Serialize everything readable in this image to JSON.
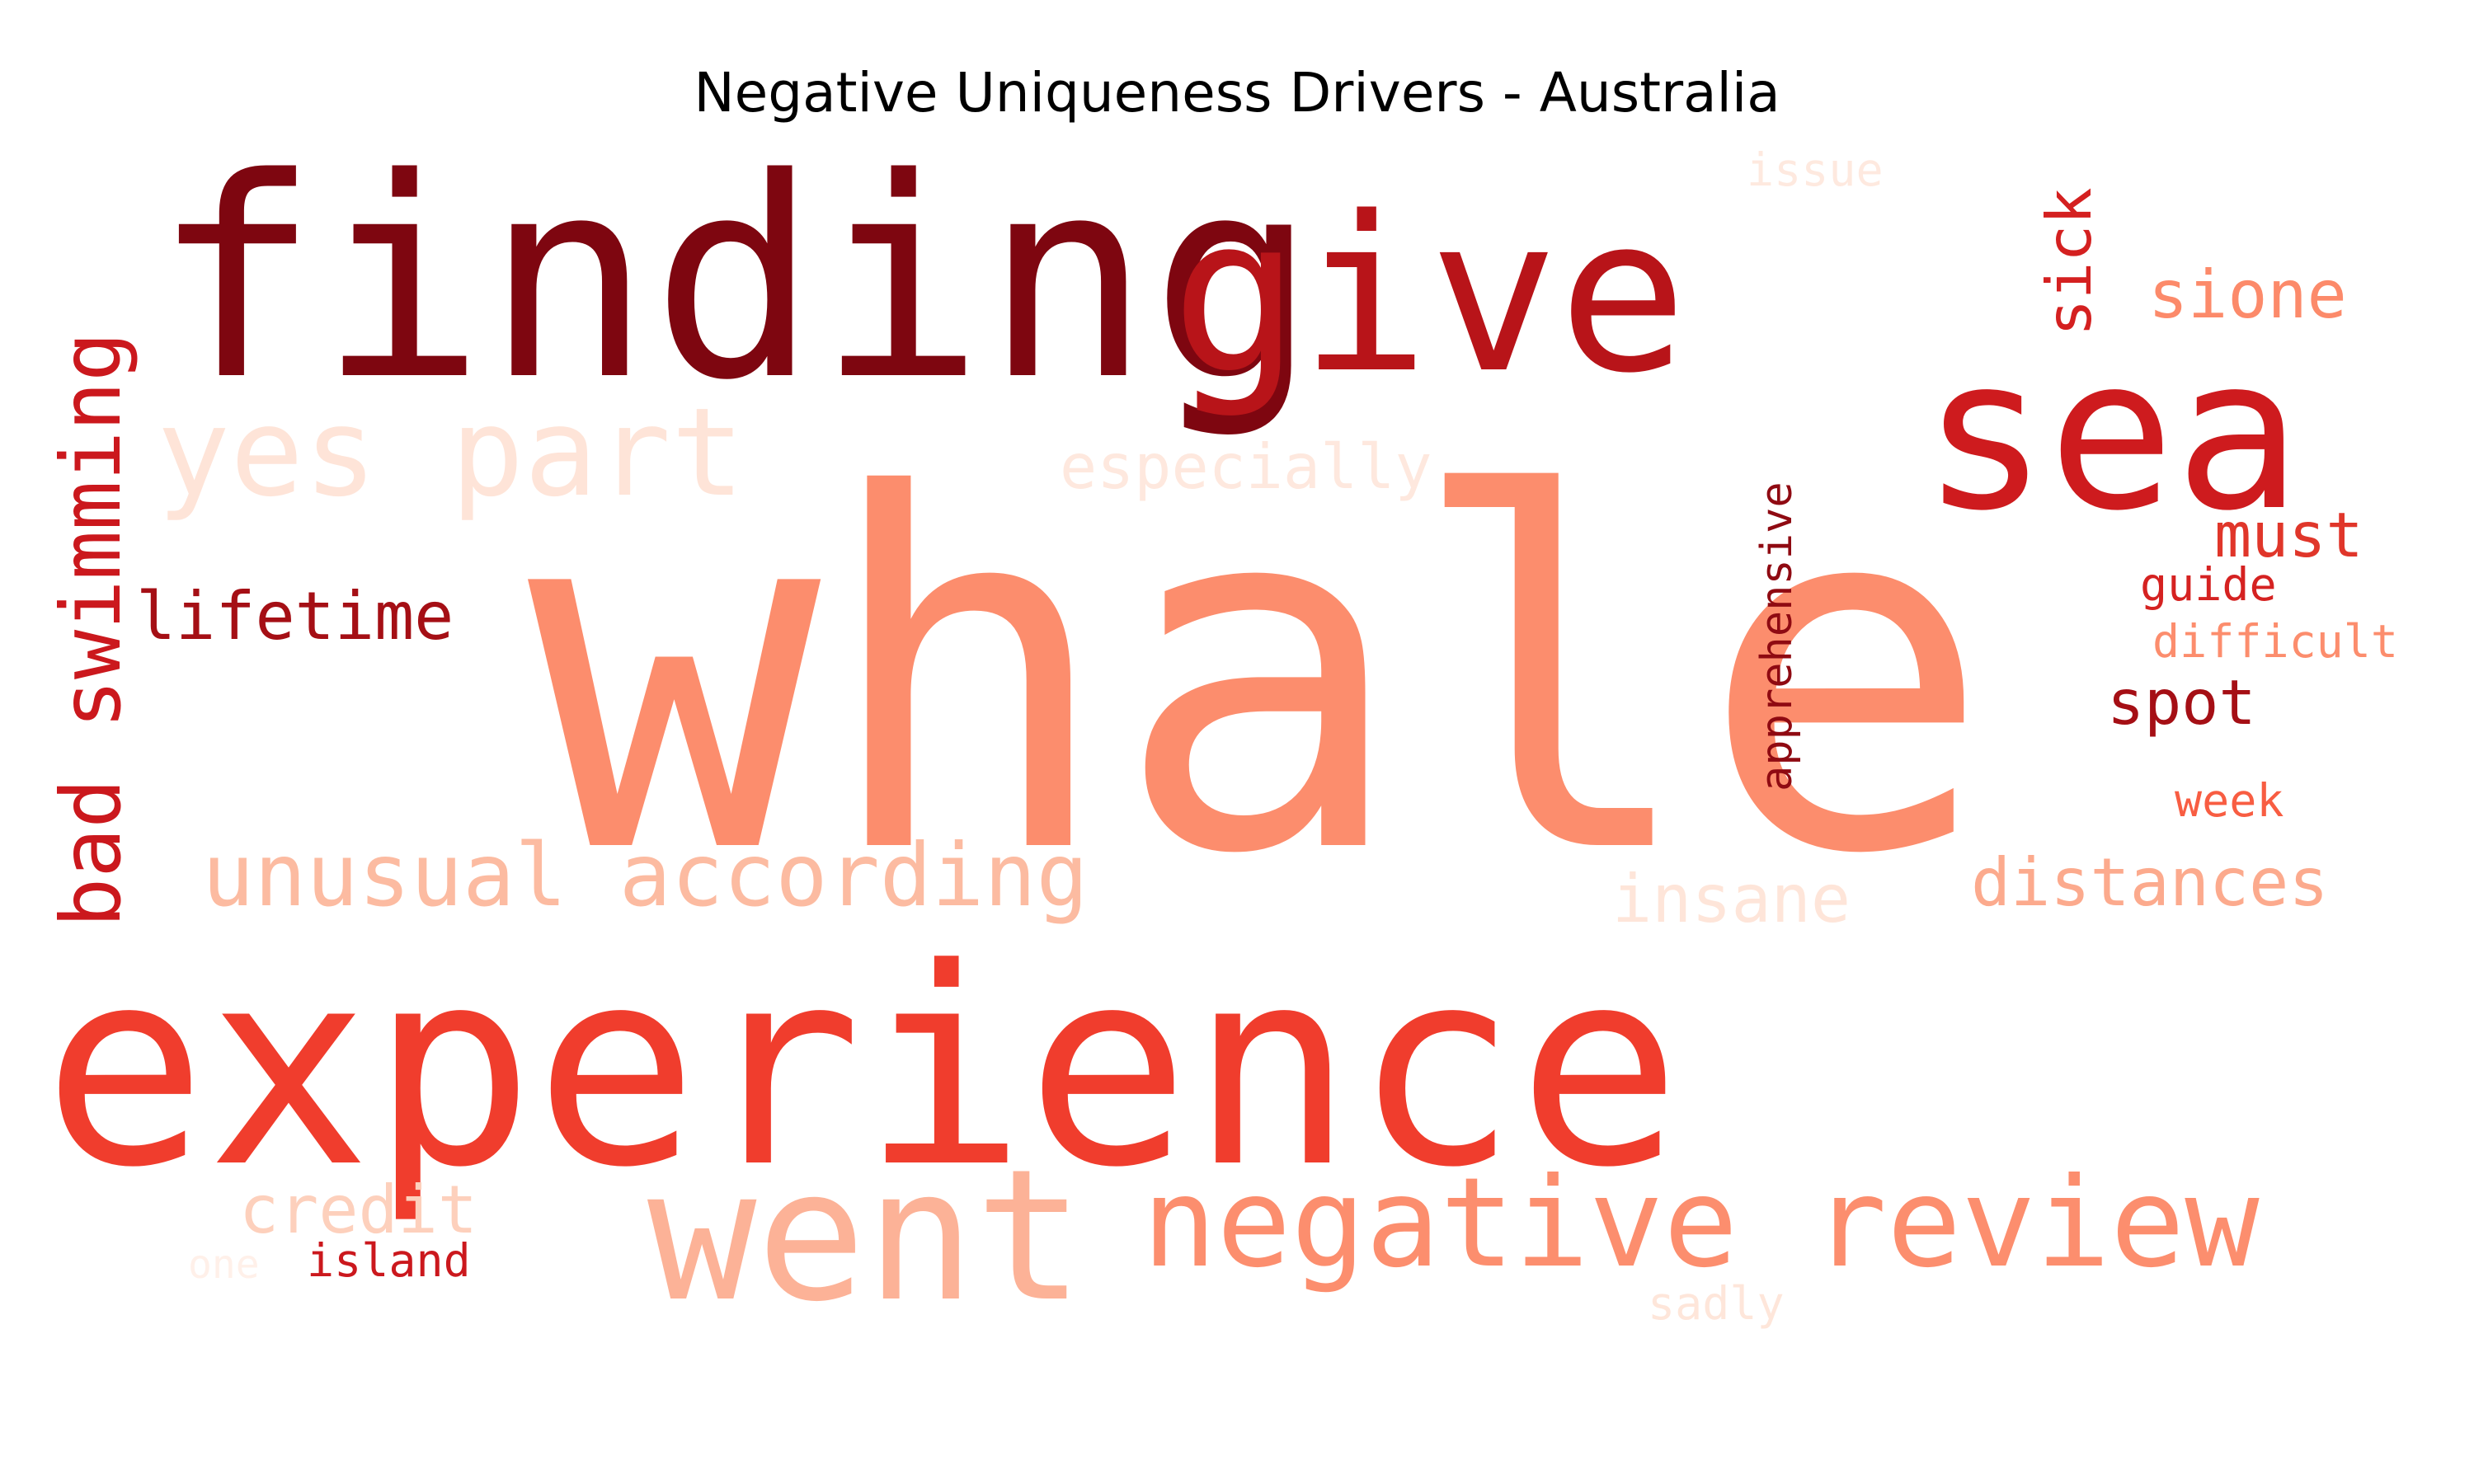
{
  "chart_data": {
    "type": "wordcloud",
    "title": "Negative Uniqueness Drivers - Australia",
    "colormap": "Reds",
    "words": [
      {
        "text": "whale",
        "weight": 100,
        "color": "#fc8d6d"
      },
      {
        "text": "experience",
        "weight": 80,
        "color": "#f03d2d"
      },
      {
        "text": "finding",
        "weight": 55,
        "color": "#7e0610"
      },
      {
        "text": "give",
        "weight": 45,
        "color": "#b81419"
      },
      {
        "text": "sea",
        "weight": 40,
        "color": "#ce1b1e"
      },
      {
        "text": "went",
        "weight": 38,
        "color": "#fcb297"
      },
      {
        "text": "negative review",
        "weight": 26,
        "color": "#fc8e6e"
      },
      {
        "text": "yes part",
        "weight": 25,
        "color": "#fee4d8"
      },
      {
        "text": "unusual according",
        "weight": 18,
        "color": "#fcbba1"
      },
      {
        "text": "bad swimming",
        "weight": 17,
        "color": "#cb181d"
      },
      {
        "text": "distances",
        "weight": 15,
        "color": "#fcaa8d"
      },
      {
        "text": "insane",
        "weight": 15,
        "color": "#fee5d9"
      },
      {
        "text": "sione",
        "weight": 14,
        "color": "#fc8a6a"
      },
      {
        "text": "lifetime",
        "weight": 14,
        "color": "#a50f15"
      },
      {
        "text": "credit",
        "weight": 14,
        "color": "#fdd0bc"
      },
      {
        "text": "especially",
        "weight": 14,
        "color": "#fee8de"
      },
      {
        "text": "sick",
        "weight": 13,
        "color": "#d42020"
      },
      {
        "text": "must",
        "weight": 13,
        "color": "#e0362a"
      },
      {
        "text": "spot",
        "weight": 13,
        "color": "#a50f15"
      },
      {
        "text": "apprehensive",
        "weight": 9,
        "color": "#8f0a12"
      },
      {
        "text": "issue",
        "weight": 9,
        "color": "#fee9df"
      },
      {
        "text": "guide",
        "weight": 9,
        "color": "#d52221"
      },
      {
        "text": "difficult",
        "weight": 9,
        "color": "#fc8d6d"
      },
      {
        "text": "week",
        "weight": 9,
        "color": "#f85d42"
      },
      {
        "text": "island",
        "weight": 9,
        "color": "#cb181d"
      },
      {
        "text": "sadly",
        "weight": 9,
        "color": "#fee6da"
      },
      {
        "text": "one",
        "weight": 8,
        "color": "#fff0e9"
      }
    ]
  }
}
